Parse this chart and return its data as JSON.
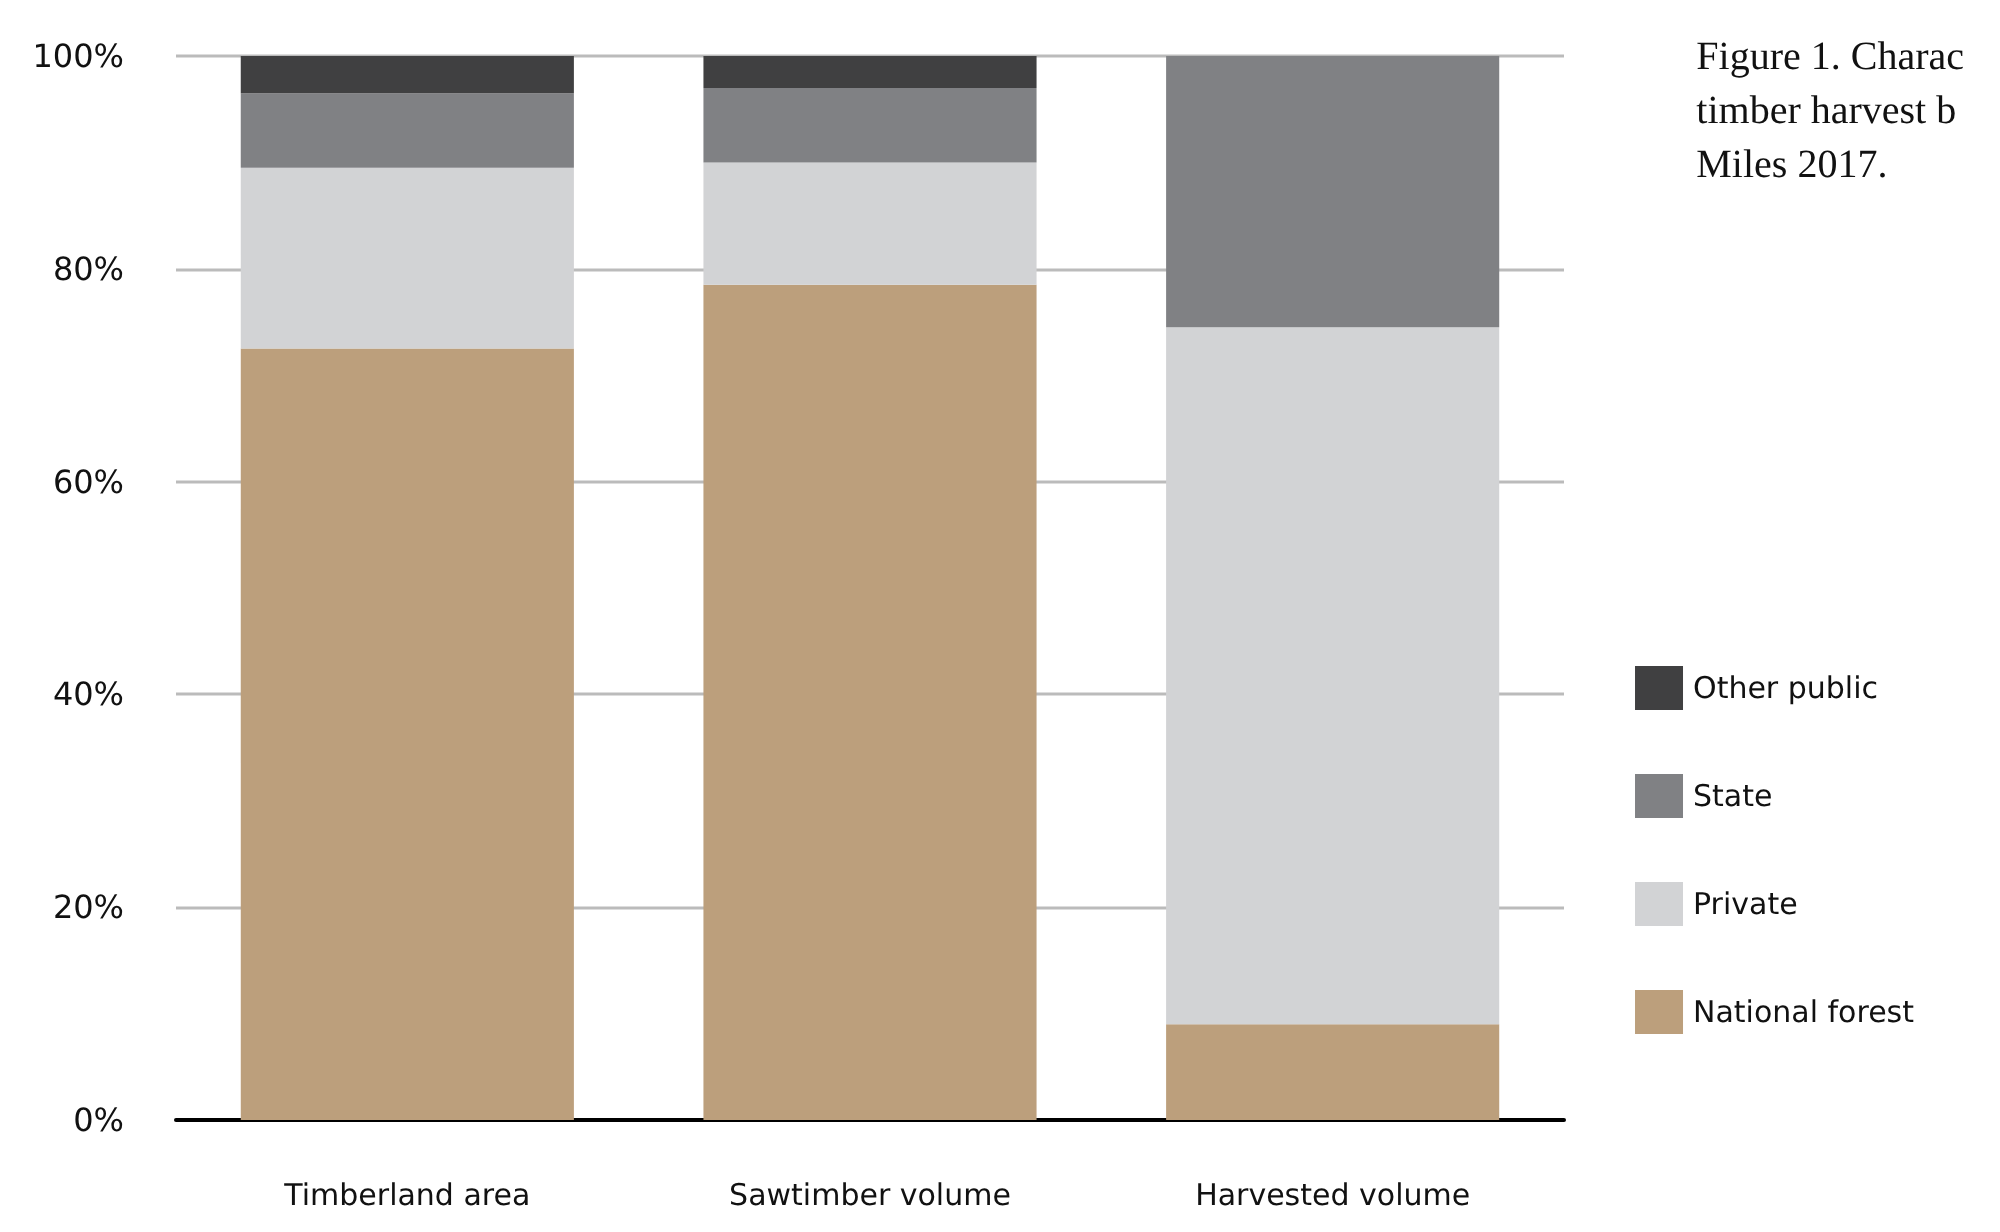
{
  "chart_data": {
    "type": "bar",
    "title": "Figure 1. Charac\ntimber harvest b\nMiles 2017.",
    "categories": [
      "Timberland area",
      "Sawtimber volume",
      "Harvested volume"
    ],
    "stacked": true,
    "series": [
      {
        "name": "National forest",
        "color": "#bc9f7c",
        "values": [
          72.5,
          78.5,
          9
        ]
      },
      {
        "name": "Private",
        "color": "#d2d3d5",
        "values": [
          17,
          11.5,
          65.5
        ]
      },
      {
        "name": "State",
        "color": "#808184",
        "values": [
          7,
          7,
          25.5
        ]
      },
      {
        "name": "Other public",
        "color": "#404041",
        "values": [
          3.5,
          3,
          0
        ]
      }
    ],
    "ylim": [
      0,
      100
    ],
    "yticks": [
      {
        "value": 0,
        "label": "0%"
      },
      {
        "value": 20,
        "label": "20%"
      },
      {
        "value": 40,
        "label": "40%"
      },
      {
        "value": 60,
        "label": "60%"
      },
      {
        "value": 80,
        "label": "80%"
      },
      {
        "value": 100,
        "label": "100%"
      }
    ],
    "grid": "y",
    "legend": "right"
  }
}
